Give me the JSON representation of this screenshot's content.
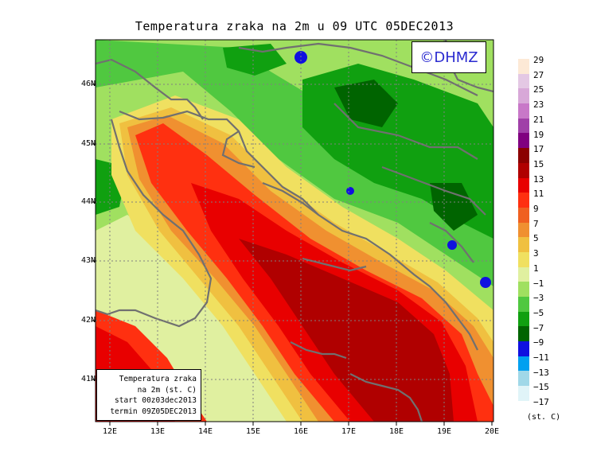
{
  "title": "Temperatura zraka na 2m u 09 UTC 05DEC2013",
  "copyright": "©DHMZ",
  "info_box": {
    "line1": "Temperatura zraka",
    "line2": "na 2m (st. C)",
    "line3": "start 00z03dec2013",
    "line4": "termin 09Z05DEC2013"
  },
  "lat_labels": [
    "46N",
    "45N",
    "44N",
    "43N",
    "42N",
    "41N"
  ],
  "lon_labels": [
    "12E",
    "13E",
    "14E",
    "15E",
    "16E",
    "17E",
    "18E",
    "19E",
    "20E"
  ],
  "legend": {
    "unit": "(st. C)",
    "labels": [
      "29",
      "27",
      "25",
      "23",
      "21",
      "19",
      "17",
      "15",
      "13",
      "11",
      "9",
      "7",
      "5",
      "3",
      "1",
      "−1",
      "−3",
      "−5",
      "−7",
      "−9",
      "−11",
      "−13",
      "−15",
      "−17"
    ],
    "colors": [
      "#fde9d6",
      "#e4c8e4",
      "#d8a8d8",
      "#c878c8",
      "#a040a8",
      "#800080",
      "#8b0000",
      "#b00000",
      "#e80000",
      "#ff3010",
      "#f06020",
      "#f09030",
      "#f0c040",
      "#f0e060",
      "#e0f0a0",
      "#a0e060",
      "#50c840",
      "#10a010",
      "#006400",
      "#1010e0",
      "#00a0f0",
      "#a0d8e8",
      "#e0f4f8",
      "#ffffff"
    ]
  },
  "colors": {
    "frame": "#000000",
    "coast": "#707070",
    "grid": "#808080",
    "copyright_text": "#2a2ad0"
  }
}
